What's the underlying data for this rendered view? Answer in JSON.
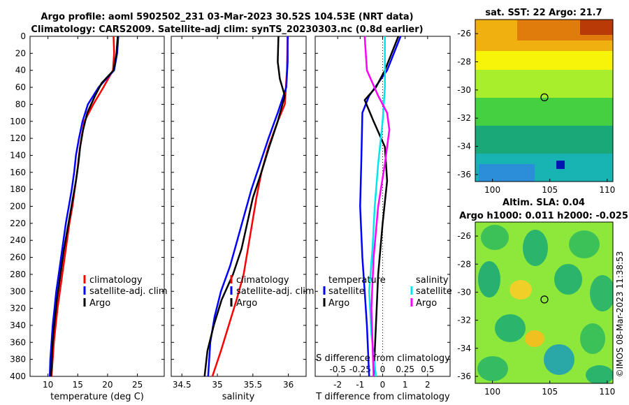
{
  "title": {
    "line1": "Argo profile: aoml 5902502_231 03-Mar-2023 30.52S 104.53E (NRT data)",
    "line2": "Climatology: CARS2009. Satellite-adj clim: synTS_20230303.nc (0.8d earlier)"
  },
  "watermark": "©IMOS 08-Mar-2023 11:38:53",
  "colors": {
    "climatology": "#ff0000",
    "satellite": "#0000ff",
    "argo": "#000000",
    "sal_clim": "#00e5ee",
    "sal_argo": "#ff00ff"
  },
  "chart_data": [
    {
      "type": "line",
      "id": "temperature",
      "xlabel": "temperature (deg C)",
      "ylabel": "depth",
      "xlim": [
        7,
        29.5
      ],
      "ylim": [
        400,
        0
      ],
      "xticks": [
        "10",
        "15",
        "20",
        "25"
      ],
      "xtick_values": [
        10,
        15,
        20,
        25
      ],
      "yticks": [
        "0",
        "20",
        "40",
        "60",
        "80",
        "100",
        "120",
        "140",
        "160",
        "180",
        "200",
        "220",
        "240",
        "260",
        "280",
        "300",
        "320",
        "340",
        "360",
        "380",
        "400"
      ],
      "legend": [
        "climatology",
        "satellite-adj. clim",
        "Argo"
      ],
      "series": [
        {
          "name": "climatology",
          "color": "#ff0000",
          "points": [
            [
              21.0,
              0
            ],
            [
              21.1,
              20
            ],
            [
              20.9,
              40
            ],
            [
              19.3,
              60
            ],
            [
              17.6,
              80
            ],
            [
              16.1,
              100
            ],
            [
              15.6,
              120
            ],
            [
              15.2,
              140
            ],
            [
              14.9,
              160
            ],
            [
              14.5,
              180
            ],
            [
              14.1,
              200
            ],
            [
              13.6,
              220
            ],
            [
              13.2,
              240
            ],
            [
              12.8,
              260
            ],
            [
              12.4,
              280
            ],
            [
              12.0,
              300
            ],
            [
              11.6,
              320
            ],
            [
              11.3,
              340
            ],
            [
              11.0,
              360
            ],
            [
              10.8,
              380
            ],
            [
              10.6,
              400
            ]
          ]
        },
        {
          "name": "satellite-adj. clim",
          "color": "#0000ff",
          "points": [
            [
              21.8,
              0
            ],
            [
              21.6,
              20
            ],
            [
              21.1,
              40
            ],
            [
              18.5,
              60
            ],
            [
              16.7,
              80
            ],
            [
              15.8,
              100
            ],
            [
              15.2,
              120
            ],
            [
              14.7,
              140
            ],
            [
              14.4,
              160
            ],
            [
              14.0,
              180
            ],
            [
              13.5,
              200
            ],
            [
              13.0,
              220
            ],
            [
              12.6,
              240
            ],
            [
              12.2,
              260
            ],
            [
              11.8,
              280
            ],
            [
              11.4,
              300
            ],
            [
              11.1,
              320
            ],
            [
              10.8,
              340
            ],
            [
              10.6,
              360
            ],
            [
              10.4,
              380
            ],
            [
              10.3,
              400
            ]
          ]
        },
        {
          "name": "Argo",
          "color": "#000000",
          "points": [
            [
              21.7,
              0
            ],
            [
              21.5,
              20
            ],
            [
              21.0,
              40
            ],
            [
              19.0,
              55
            ],
            [
              17.9,
              70
            ],
            [
              16.6,
              90
            ],
            [
              15.9,
              110
            ],
            [
              15.4,
              130
            ],
            [
              15.1,
              150
            ],
            [
              14.7,
              170
            ],
            [
              14.2,
              190
            ],
            [
              13.7,
              210
            ],
            [
              13.2,
              230
            ],
            [
              12.7,
              250
            ],
            [
              12.3,
              270
            ],
            [
              11.9,
              290
            ],
            [
              11.5,
              310
            ],
            [
              11.2,
              330
            ],
            [
              10.9,
              350
            ],
            [
              10.7,
              370
            ],
            [
              10.6,
              390
            ],
            [
              10.5,
              400
            ]
          ]
        }
      ]
    },
    {
      "type": "line",
      "id": "salinity",
      "xlabel": "salinity",
      "ylim": [
        400,
        0
      ],
      "xlim": [
        34.35,
        36.25
      ],
      "xticks": [
        "34.5",
        "35",
        "35.5",
        "36"
      ],
      "xtick_values": [
        34.5,
        35,
        35.5,
        36
      ],
      "legend": [
        "climatology",
        "satellite-adj. clim",
        "Argo"
      ],
      "series": [
        {
          "name": "climatology",
          "color": "#ff0000",
          "points": [
            [
              35.99,
              0
            ],
            [
              35.98,
              40
            ],
            [
              35.95,
              80
            ],
            [
              35.85,
              100
            ],
            [
              35.72,
              130
            ],
            [
              35.62,
              160
            ],
            [
              35.55,
              190
            ],
            [
              35.49,
              220
            ],
            [
              35.43,
              250
            ],
            [
              35.37,
              280
            ],
            [
              35.27,
              310
            ],
            [
              35.16,
              340
            ],
            [
              35.05,
              370
            ],
            [
              34.93,
              400
            ]
          ]
        },
        {
          "name": "satellite-adj. clim",
          "color": "#0000ff",
          "points": [
            [
              35.99,
              0
            ],
            [
              35.99,
              30
            ],
            [
              35.97,
              60
            ],
            [
              35.85,
              90
            ],
            [
              35.72,
              120
            ],
            [
              35.6,
              150
            ],
            [
              35.48,
              180
            ],
            [
              35.38,
              210
            ],
            [
              35.28,
              240
            ],
            [
              35.18,
              270
            ],
            [
              35.05,
              300
            ],
            [
              34.96,
              330
            ],
            [
              34.9,
              360
            ],
            [
              34.87,
              400
            ]
          ]
        },
        {
          "name": "Argo",
          "color": "#000000",
          "points": [
            [
              35.86,
              0
            ],
            [
              35.85,
              30
            ],
            [
              35.88,
              50
            ],
            [
              35.95,
              70
            ],
            [
              35.85,
              100
            ],
            [
              35.73,
              130
            ],
            [
              35.62,
              160
            ],
            [
              35.5,
              190
            ],
            [
              35.42,
              220
            ],
            [
              35.34,
              250
            ],
            [
              35.22,
              280
            ],
            [
              35.06,
              310
            ],
            [
              34.95,
              340
            ],
            [
              34.86,
              370
            ],
            [
              34.82,
              400
            ]
          ]
        }
      ]
    },
    {
      "type": "line",
      "id": "difference",
      "xlabel": "T difference from climatology",
      "xlabel2": "S difference from climatology",
      "xlim": [
        -3,
        3
      ],
      "ylim": [
        400,
        0
      ],
      "xticks": [
        "-2",
        "-1",
        "0",
        "1",
        "2"
      ],
      "xtick_values": [
        -2,
        -1,
        0,
        1,
        2
      ],
      "xticks2": [
        "-0.5",
        "-0.25",
        "0",
        "0.25",
        "0.5"
      ],
      "xtick2_values": [
        -2,
        -1,
        0,
        1,
        2
      ],
      "legend_t": {
        "title": "temperature",
        "items": [
          "satellite",
          "Argo"
        ]
      },
      "legend_s": {
        "title": "salinity",
        "items": [
          "satellite",
          "Argo"
        ]
      },
      "series": [
        {
          "name": "T satellite",
          "color": "#0000ff",
          "points": [
            [
              0.8,
              0
            ],
            [
              0.2,
              40
            ],
            [
              -0.6,
              70
            ],
            [
              -0.9,
              90
            ],
            [
              -0.95,
              150
            ],
            [
              -1.0,
              200
            ],
            [
              -0.9,
              260
            ],
            [
              -0.8,
              300
            ],
            [
              -0.7,
              340
            ],
            [
              -0.6,
              400
            ]
          ]
        },
        {
          "name": "T Argo",
          "color": "#000000",
          "points": [
            [
              0.7,
              0
            ],
            [
              0.1,
              40
            ],
            [
              -0.3,
              60
            ],
            [
              -0.8,
              75
            ],
            [
              -0.4,
              100
            ],
            [
              0.1,
              130
            ],
            [
              0.2,
              170
            ],
            [
              0.0,
              220
            ],
            [
              -0.2,
              280
            ],
            [
              -0.3,
              340
            ],
            [
              -0.4,
              400
            ]
          ]
        },
        {
          "name": "S satellite",
          "color": "#00e5ee",
          "points": [
            [
              0.1,
              0
            ],
            [
              0.1,
              60
            ],
            [
              0.0,
              100
            ],
            [
              -0.2,
              150
            ],
            [
              -0.35,
              200
            ],
            [
              -0.45,
              250
            ],
            [
              -0.6,
              300
            ],
            [
              -0.5,
              350
            ],
            [
              -0.3,
              400
            ]
          ]
        },
        {
          "name": "S Argo",
          "color": "#ff00ff",
          "points": [
            [
              -0.8,
              0
            ],
            [
              -0.7,
              40
            ],
            [
              -0.2,
              70
            ],
            [
              0.2,
              90
            ],
            [
              0.3,
              110
            ],
            [
              0.1,
              150
            ],
            [
              -0.2,
              200
            ],
            [
              -0.4,
              260
            ],
            [
              -0.5,
              320
            ],
            [
              -0.4,
              400
            ]
          ]
        }
      ]
    },
    {
      "type": "heatmap",
      "id": "sst_map",
      "title": "sat. SST: 22 Argo: 21.7",
      "xlim": [
        98.5,
        110.5
      ],
      "ylim": [
        -36.5,
        -25
      ],
      "xticks": [
        "100",
        "105",
        "110"
      ],
      "xtick_values": [
        100,
        105,
        110
      ],
      "yticks": [
        "-26",
        "-28",
        "-30",
        "-32",
        "-34",
        "-36"
      ],
      "ytick_values": [
        -26,
        -28,
        -30,
        -32,
        -34,
        -36
      ],
      "marker": {
        "lon": 104.53,
        "lat": -30.52
      }
    },
    {
      "type": "heatmap",
      "id": "sla_map",
      "title": "Altim. SLA: 0.04",
      "subtitle": "Argo h1000: 0.011 h2000: -0.025",
      "xlim": [
        98.5,
        110.5
      ],
      "ylim": [
        -36.5,
        -25
      ],
      "xticks": [
        "100",
        "105",
        "110"
      ],
      "xtick_values": [
        100,
        105,
        110
      ],
      "yticks": [
        "-26",
        "-28",
        "-30",
        "-32",
        "-34",
        "-36"
      ],
      "ytick_values": [
        -26,
        -28,
        -30,
        -32,
        -34,
        -36
      ],
      "marker": {
        "lon": 104.53,
        "lat": -30.52
      }
    }
  ]
}
